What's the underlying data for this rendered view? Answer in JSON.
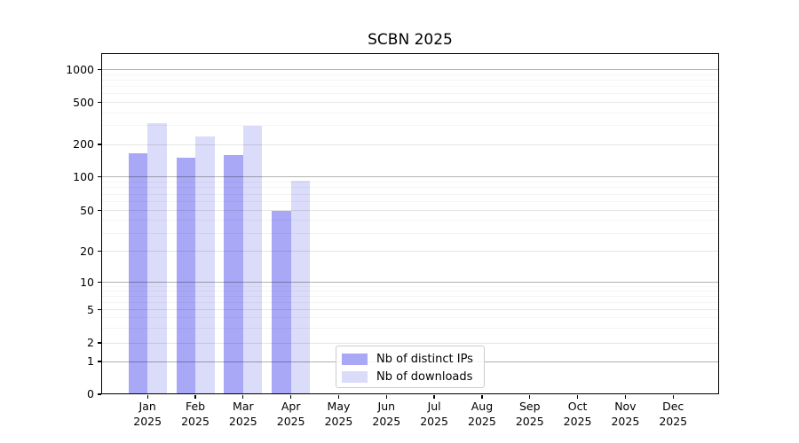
{
  "chart_data": {
    "type": "bar",
    "title": "SCBN 2025",
    "y_scale": "symlog",
    "y_ticks": [
      0,
      1,
      2,
      5,
      10,
      20,
      50,
      100,
      200,
      500,
      1000
    ],
    "grid": {
      "decade_lines": [
        1,
        10,
        100,
        1000
      ],
      "tick_lines": [
        2,
        5,
        20,
        50,
        200,
        500
      ],
      "minor_lines": [
        3,
        4,
        6,
        7,
        8,
        9,
        30,
        40,
        60,
        70,
        80,
        90,
        300,
        400,
        600,
        700,
        800,
        900
      ]
    },
    "x_months": [
      "Jan",
      "Feb",
      "Mar",
      "Apr",
      "May",
      "Jun",
      "Jul",
      "Aug",
      "Sep",
      "Oct",
      "Nov",
      "Dec"
    ],
    "x_year": "2025",
    "categories": [
      "Jan 2025",
      "Feb 2025",
      "Mar 2025",
      "Apr 2025",
      "May 2025",
      "Jun 2025",
      "Jul 2025",
      "Aug 2025",
      "Sep 2025",
      "Oct 2025",
      "Nov 2025",
      "Dec 2025"
    ],
    "series": [
      {
        "name": "Nb of distinct IPs",
        "color": "#a8a8f6",
        "values": [
          165,
          150,
          160,
          50,
          0,
          0,
          0,
          0,
          0,
          0,
          0,
          0
        ]
      },
      {
        "name": "Nb of downloads",
        "color": "#dbdbfa",
        "values": [
          320,
          240,
          300,
          92,
          0,
          0,
          0,
          0,
          0,
          0,
          0,
          0
        ]
      }
    ],
    "legend": {
      "position": "lower center-left inside plot"
    },
    "colors": {
      "background": "#ffffff",
      "text": "#000000",
      "spine": "#000000",
      "legend_border": "#cccccc"
    }
  }
}
